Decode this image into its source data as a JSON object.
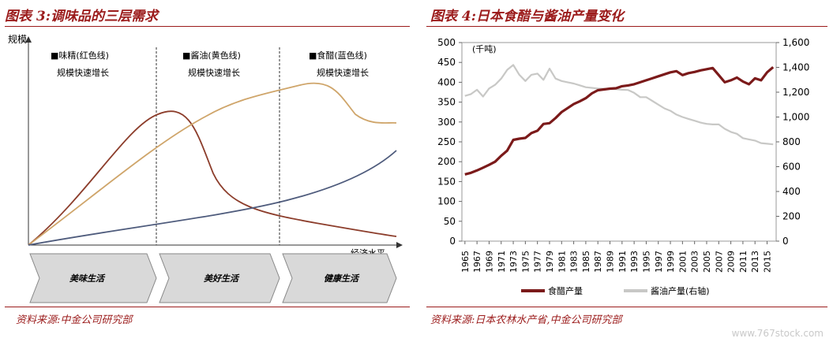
{
  "left_panel": {
    "title": "图表 3:调味品的三层需求",
    "source": "资料来源:中金公司研究部",
    "chart_data": {
      "type": "line",
      "title": "",
      "ylabel": "规模",
      "xlabel": "经济水平",
      "series": [
        {
          "name": "味精",
          "color": "#8c3d2b"
        },
        {
          "name": "酱油",
          "color": "#cfa56a"
        },
        {
          "name": "食醋",
          "color": "#4e5b7c"
        }
      ],
      "annotations": [
        {
          "line1": "■味精(红色线)",
          "line2": "规模快速增长"
        },
        {
          "line1": "■酱油(黄色线)",
          "line2": "规模快速增长"
        },
        {
          "line1": "■食醋(蓝色线)",
          "line2": "规模快速增长"
        }
      ],
      "stages": [
        "美味生活",
        "美好生活",
        "健康生活"
      ]
    }
  },
  "right_panel": {
    "title": "图表 4:日本食醋与酱油产量变化",
    "source": "资料来源:日本农林水产省,中金公司研究部",
    "chart_data": {
      "type": "line",
      "title": "",
      "unit_label": "(千吨)",
      "x_ticks": [
        "1965",
        "1967",
        "1969",
        "1971",
        "1973",
        "1975",
        "1977",
        "1979",
        "1981",
        "1983",
        "1985",
        "1987",
        "1989",
        "1991",
        "1993",
        "1995",
        "1997",
        "1999",
        "2001",
        "2003",
        "2005",
        "2007",
        "2009",
        "2011",
        "2013",
        "2015"
      ],
      "y_left": {
        "min": 0,
        "max": 500,
        "ticks": [
          "0",
          "50",
          "100",
          "150",
          "200",
          "250",
          "300",
          "350",
          "400",
          "450",
          "500"
        ]
      },
      "y_right": {
        "min": 0,
        "max": 1600,
        "ticks": [
          "0",
          "200",
          "400",
          "600",
          "800",
          "1,000",
          "1,200",
          "1,400",
          "1,600"
        ]
      },
      "x": [
        1965,
        1966,
        1967,
        1968,
        1969,
        1970,
        1971,
        1972,
        1973,
        1974,
        1975,
        1976,
        1977,
        1978,
        1979,
        1980,
        1981,
        1982,
        1983,
        1984,
        1985,
        1986,
        1987,
        1988,
        1989,
        1990,
        1991,
        1992,
        1993,
        1994,
        1995,
        1996,
        1997,
        1998,
        1999,
        2000,
        2001,
        2002,
        2003,
        2004,
        2005,
        2006,
        2007,
        2008,
        2009,
        2010,
        2011,
        2012,
        2013,
        2014,
        2015,
        2016
      ],
      "series": [
        {
          "name": "食醋产量",
          "axis": "left",
          "color": "#7b1a1a",
          "values": [
            168,
            172,
            178,
            185,
            192,
            200,
            215,
            228,
            255,
            258,
            260,
            272,
            278,
            295,
            297,
            310,
            325,
            335,
            345,
            352,
            360,
            372,
            380,
            382,
            384,
            385,
            390,
            392,
            395,
            400,
            405,
            410,
            415,
            420,
            425,
            428,
            418,
            423,
            426,
            430,
            433,
            436,
            418,
            400,
            405,
            412,
            402,
            395,
            410,
            405,
            425,
            438
          ]
        },
        {
          "name": "酱油产量(右轴)",
          "axis": "right",
          "color": "#c8c8c6",
          "values": [
            1170,
            1185,
            1220,
            1165,
            1230,
            1260,
            1310,
            1380,
            1420,
            1340,
            1290,
            1340,
            1350,
            1300,
            1390,
            1310,
            1290,
            1280,
            1270,
            1255,
            1240,
            1235,
            1230,
            1228,
            1226,
            1225,
            1220,
            1218,
            1195,
            1160,
            1160,
            1130,
            1100,
            1070,
            1050,
            1020,
            1000,
            985,
            970,
            955,
            945,
            940,
            940,
            905,
            880,
            865,
            830,
            820,
            810,
            790,
            785,
            780
          ]
        }
      ]
    }
  },
  "watermark": "www.767stock.com"
}
